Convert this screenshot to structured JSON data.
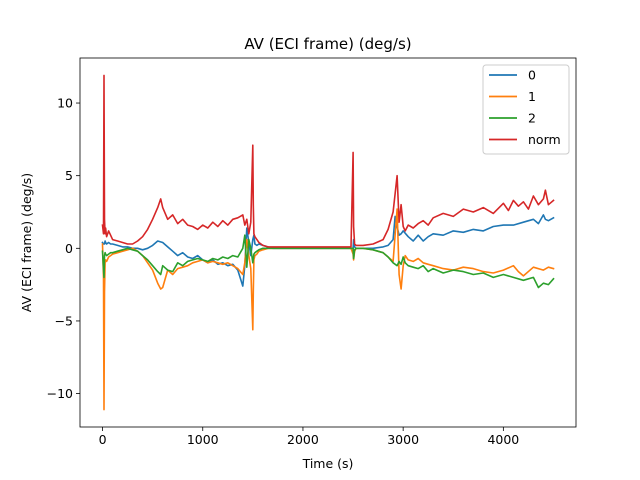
{
  "chart_data": {
    "type": "line",
    "title": "AV (ECI frame) (deg/s)",
    "xlabel": "Time (s)",
    "ylabel": "AV (ECI frame) (deg/s)",
    "xlim": [
      -225,
      4725
    ],
    "ylim": [
      -12.3,
      13.1
    ],
    "xticks": [
      0,
      1000,
      2000,
      3000,
      4000
    ],
    "xtick_labels": [
      "0",
      "1000",
      "2000",
      "3000",
      "4000"
    ],
    "yticks": [
      -10,
      -5,
      0,
      5,
      10
    ],
    "ytick_labels": [
      "−10",
      "−5",
      "0",
      "5",
      "10"
    ],
    "grid": false,
    "legend_position": "top-right",
    "series": [
      {
        "name": "0",
        "color": "#1f77b4",
        "x": [
          0,
          10,
          20,
          25,
          30,
          40,
          60,
          80,
          100,
          150,
          200,
          250,
          300,
          350,
          400,
          450,
          500,
          550,
          600,
          650,
          700,
          750,
          800,
          850,
          900,
          950,
          1000,
          1050,
          1100,
          1150,
          1200,
          1250,
          1300,
          1350,
          1400,
          1420,
          1440,
          1460,
          1480,
          1500,
          1510,
          1520,
          1540,
          1560,
          1600,
          1650,
          1700,
          1800,
          1900,
          2000,
          2100,
          2200,
          2300,
          2400,
          2480,
          2500,
          2505,
          2515,
          2530,
          2560,
          2600,
          2700,
          2800,
          2850,
          2900,
          2920,
          2940,
          2960,
          2980,
          3000,
          3050,
          3100,
          3150,
          3200,
          3250,
          3300,
          3400,
          3500,
          3600,
          3700,
          3800,
          3900,
          4000,
          4100,
          4200,
          4300,
          4350,
          4400,
          4420,
          4450,
          4500
        ],
        "y": [
          0.4,
          0.3,
          0.3,
          0.5,
          0.4,
          0.3,
          0.4,
          0.3,
          0.3,
          0.2,
          0.1,
          0.1,
          0.0,
          0.0,
          -0.1,
          0.0,
          0.2,
          0.5,
          0.4,
          0.1,
          -0.2,
          -0.5,
          -0.3,
          -0.6,
          -0.7,
          -0.5,
          -0.8,
          -1.0,
          -0.8,
          -1.1,
          -1.0,
          -1.2,
          -1.1,
          -1.5,
          -2.6,
          -1.2,
          1.4,
          0.4,
          -0.5,
          0.6,
          0.9,
          0.3,
          0.2,
          0.3,
          0.2,
          0.1,
          0.0,
          0.0,
          0.0,
          0.0,
          0.0,
          0.0,
          0.0,
          0.0,
          0.0,
          0.0,
          0.6,
          0.1,
          0.0,
          0.0,
          0.0,
          0.0,
          0.1,
          0.2,
          0.6,
          2.2,
          1.5,
          0.9,
          1.0,
          1.2,
          0.8,
          0.5,
          0.9,
          0.5,
          0.8,
          1.0,
          0.9,
          1.2,
          1.1,
          1.3,
          1.2,
          1.5,
          1.6,
          1.6,
          1.8,
          2.0,
          1.7,
          2.3,
          2.0,
          1.9,
          2.1
        ]
      },
      {
        "name": "1",
        "color": "#ff7f0e",
        "x": [
          0,
          10,
          15,
          20,
          25,
          30,
          40,
          60,
          80,
          100,
          150,
          200,
          250,
          300,
          350,
          400,
          450,
          500,
          550,
          580,
          600,
          650,
          700,
          750,
          800,
          850,
          900,
          950,
          1000,
          1050,
          1100,
          1150,
          1200,
          1250,
          1300,
          1350,
          1400,
          1420,
          1440,
          1460,
          1480,
          1500,
          1505,
          1510,
          1520,
          1540,
          1560,
          1600,
          1650,
          1700,
          1800,
          1900,
          2000,
          2100,
          2200,
          2300,
          2400,
          2480,
          2500,
          2505,
          2515,
          2530,
          2560,
          2600,
          2700,
          2800,
          2850,
          2900,
          2940,
          2960,
          2980,
          3000,
          3020,
          3050,
          3100,
          3150,
          3200,
          3250,
          3300,
          3400,
          3500,
          3600,
          3700,
          3800,
          3900,
          4000,
          4100,
          4150,
          4200,
          4300,
          4400,
          4450,
          4500
        ],
        "y": [
          0.3,
          -2.0,
          -11.1,
          -3.0,
          -1.0,
          -0.8,
          -0.9,
          -0.6,
          -0.5,
          -0.4,
          -0.3,
          -0.2,
          -0.1,
          0.0,
          -0.2,
          -0.5,
          -1.0,
          -1.5,
          -2.4,
          -2.8,
          -2.7,
          -1.5,
          -1.8,
          -1.4,
          -1.3,
          -1.2,
          -1.0,
          -0.9,
          -0.8,
          -1.0,
          -0.9,
          -1.0,
          -1.1,
          -1.0,
          -1.2,
          -1.4,
          -1.8,
          -1.0,
          0.6,
          -0.5,
          -1.4,
          -5.6,
          -3.0,
          -0.8,
          -0.5,
          -0.4,
          -0.2,
          -0.1,
          0.0,
          0.0,
          0.0,
          0.0,
          0.0,
          0.0,
          0.0,
          0.0,
          0.0,
          0.0,
          -0.4,
          -0.8,
          -0.2,
          0.0,
          0.0,
          0.0,
          -0.1,
          -0.3,
          -0.6,
          -0.9,
          2.7,
          -1.8,
          -2.8,
          -1.2,
          -0.5,
          -0.8,
          -0.9,
          -0.7,
          -1.0,
          -1.1,
          -1.2,
          -1.4,
          -1.5,
          -1.3,
          -1.4,
          -1.6,
          -1.7,
          -1.5,
          -1.2,
          -1.6,
          -1.9,
          -1.3,
          -1.5,
          -1.3,
          -1.4
        ]
      },
      {
        "name": "2",
        "color": "#2ca02c",
        "x": [
          0,
          10,
          15,
          20,
          25,
          30,
          40,
          60,
          80,
          100,
          150,
          200,
          250,
          300,
          350,
          400,
          450,
          500,
          550,
          580,
          600,
          650,
          700,
          750,
          800,
          850,
          900,
          950,
          1000,
          1050,
          1100,
          1150,
          1200,
          1250,
          1300,
          1350,
          1400,
          1420,
          1440,
          1460,
          1480,
          1500,
          1510,
          1520,
          1540,
          1560,
          1600,
          1650,
          1700,
          1800,
          1900,
          2000,
          2100,
          2200,
          2300,
          2400,
          2480,
          2500,
          2505,
          2515,
          2530,
          2560,
          2600,
          2700,
          2800,
          2850,
          2900,
          2940,
          2960,
          2980,
          3000,
          3020,
          3050,
          3100,
          3150,
          3200,
          3250,
          3300,
          3400,
          3500,
          3600,
          3700,
          3800,
          3900,
          4000,
          4100,
          4200,
          4300,
          4350,
          4400,
          4450,
          4500
        ],
        "y": [
          -0.2,
          -1.5,
          -2.0,
          -0.5,
          -0.3,
          -0.4,
          -0.5,
          -0.4,
          -0.3,
          -0.3,
          -0.2,
          -0.1,
          0.0,
          -0.1,
          -0.2,
          -0.5,
          -0.8,
          -1.2,
          -1.6,
          -1.8,
          -1.2,
          -1.5,
          -1.6,
          -1.0,
          -1.2,
          -0.9,
          -0.8,
          -0.7,
          -0.8,
          -0.9,
          -0.7,
          -0.8,
          -0.6,
          -0.7,
          -0.5,
          -0.6,
          0.0,
          0.9,
          -1.3,
          0.6,
          0.0,
          -1.0,
          -0.4,
          -0.3,
          -0.2,
          -0.1,
          0.0,
          0.0,
          0.0,
          0.0,
          0.0,
          0.0,
          0.0,
          0.0,
          0.0,
          0.0,
          0.0,
          0.0,
          -0.7,
          -0.1,
          0.0,
          0.0,
          0.0,
          -0.1,
          -0.3,
          -0.6,
          -1.0,
          -1.2,
          -0.9,
          -1.1,
          -0.6,
          -1.0,
          -1.2,
          -1.3,
          -1.4,
          -1.2,
          -1.6,
          -1.4,
          -1.7,
          -1.5,
          -1.6,
          -1.8,
          -1.7,
          -2.0,
          -1.8,
          -2.0,
          -2.2,
          -2.0,
          -2.7,
          -2.4,
          -2.5,
          -2.1
        ]
      },
      {
        "name": "norm",
        "color": "#d62728",
        "x": [
          0,
          10,
          15,
          20,
          25,
          30,
          40,
          60,
          80,
          100,
          150,
          200,
          250,
          300,
          350,
          400,
          450,
          500,
          550,
          580,
          600,
          650,
          700,
          750,
          800,
          850,
          900,
          950,
          1000,
          1050,
          1100,
          1150,
          1200,
          1250,
          1300,
          1350,
          1400,
          1420,
          1440,
          1460,
          1480,
          1500,
          1505,
          1510,
          1520,
          1540,
          1560,
          1600,
          1650,
          1700,
          1800,
          1900,
          2000,
          2100,
          2200,
          2300,
          2400,
          2480,
          2500,
          2505,
          2515,
          2530,
          2560,
          2600,
          2700,
          2800,
          2850,
          2900,
          2940,
          2960,
          2980,
          3000,
          3020,
          3050,
          3100,
          3150,
          3200,
          3250,
          3300,
          3400,
          3500,
          3600,
          3700,
          3800,
          3900,
          4000,
          4050,
          4100,
          4150,
          4200,
          4250,
          4300,
          4350,
          4400,
          4420,
          4450,
          4500
        ],
        "y": [
          1.6,
          1.0,
          11.9,
          2.0,
          1.0,
          1.4,
          0.8,
          1.2,
          0.9,
          0.6,
          0.5,
          0.4,
          0.3,
          0.3,
          0.5,
          0.8,
          1.3,
          2.0,
          2.8,
          3.4,
          2.8,
          2.0,
          2.3,
          1.7,
          2.0,
          1.6,
          1.5,
          1.3,
          1.6,
          1.4,
          1.8,
          1.5,
          1.9,
          1.6,
          2.0,
          2.1,
          2.3,
          1.6,
          2.0,
          1.0,
          1.8,
          7.1,
          3.0,
          1.0,
          0.8,
          0.6,
          0.4,
          0.2,
          0.1,
          0.1,
          0.1,
          0.1,
          0.1,
          0.1,
          0.1,
          0.1,
          0.1,
          0.1,
          6.6,
          1.5,
          0.3,
          0.2,
          0.2,
          0.2,
          0.3,
          0.6,
          1.3,
          2.5,
          5.0,
          1.8,
          3.0,
          1.5,
          1.2,
          1.6,
          1.4,
          1.7,
          1.9,
          1.6,
          2.1,
          2.4,
          2.2,
          2.7,
          2.5,
          2.8,
          2.4,
          3.1,
          2.6,
          3.3,
          2.9,
          3.2,
          2.7,
          3.6,
          3.0,
          3.4,
          4.0,
          3.0,
          3.3
        ]
      }
    ]
  }
}
